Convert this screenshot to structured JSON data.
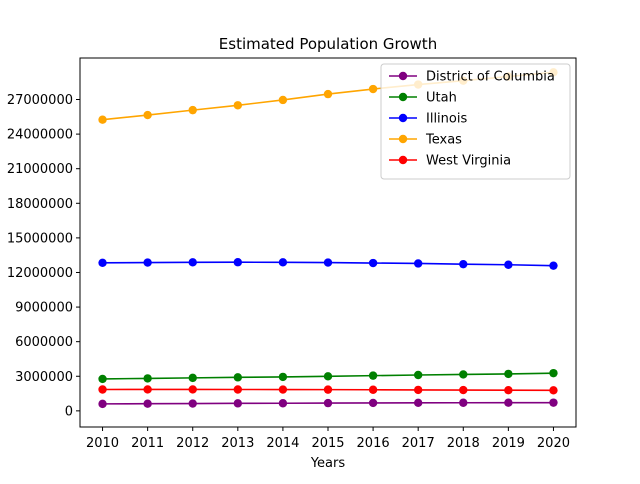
{
  "chart_data": {
    "type": "line",
    "title": "Estimated Population Growth",
    "xlabel": "Years",
    "ylabel": "",
    "x": [
      2010,
      2011,
      2012,
      2013,
      2014,
      2015,
      2016,
      2017,
      2018,
      2019,
      2020
    ],
    "x_ticks": [
      "2010",
      "2011",
      "2012",
      "2013",
      "2014",
      "2015",
      "2016",
      "2017",
      "2018",
      "2019",
      "2020"
    ],
    "y_ticks": [
      0,
      3000000,
      6000000,
      9000000,
      12000000,
      15000000,
      18000000,
      21000000,
      24000000,
      27000000
    ],
    "y_tick_labels": [
      "0",
      "3000000",
      "6000000",
      "9000000",
      "12000000",
      "15000000",
      "18000000",
      "21000000",
      "24000000",
      "27000000"
    ],
    "ylim": [
      -1400000,
      30600000
    ],
    "xlim": [
      2009.5,
      2020.5
    ],
    "grid": false,
    "legend_position": "top-right",
    "series": [
      {
        "name": "District of Columbia",
        "color": "#800080",
        "values": [
          605000,
          620000,
          635000,
          650000,
          660000,
          672000,
          685000,
          695000,
          702000,
          706000,
          712000
        ]
      },
      {
        "name": "Utah",
        "color": "#008000",
        "values": [
          2770000,
          2815000,
          2860000,
          2905000,
          2945000,
          2995000,
          3055000,
          3110000,
          3160000,
          3205000,
          3270000
        ]
      },
      {
        "name": "Illinois",
        "color": "#0000ff",
        "values": [
          12840000,
          12860000,
          12880000,
          12890000,
          12880000,
          12860000,
          12820000,
          12780000,
          12720000,
          12670000,
          12590000
        ]
      },
      {
        "name": "Texas",
        "color": "#ffa500",
        "values": [
          25250000,
          25650000,
          26080000,
          26500000,
          26960000,
          27470000,
          27910000,
          28300000,
          28630000,
          28990000,
          29360000
        ]
      },
      {
        "name": "West Virginia",
        "color": "#ff0000",
        "values": [
          1853000,
          1855000,
          1856000,
          1853000,
          1848000,
          1842000,
          1831000,
          1817000,
          1805000,
          1792000,
          1784000
        ]
      }
    ]
  }
}
